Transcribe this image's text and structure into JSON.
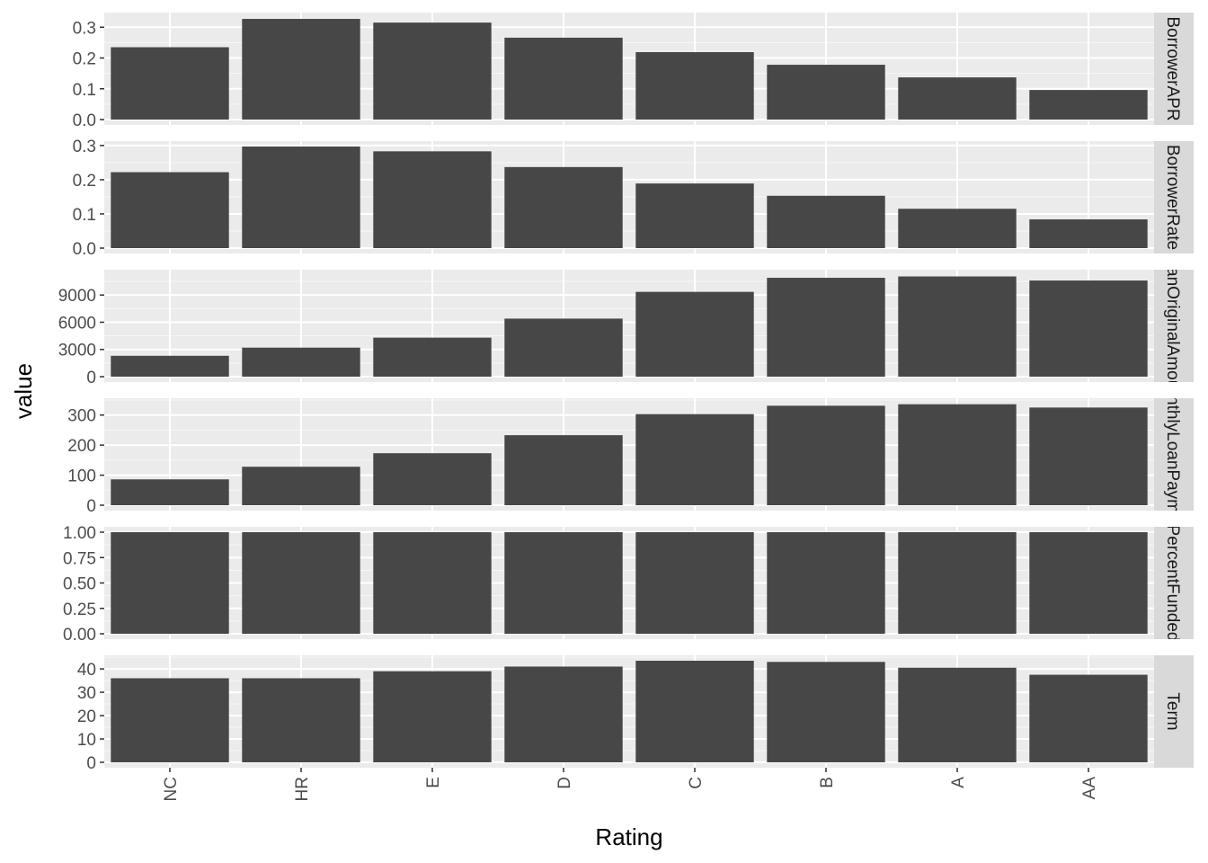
{
  "chart_data": {
    "type": "bar",
    "facet": "rows",
    "xlabel": "Rating",
    "ylabel": "value",
    "categories": [
      "NC",
      "HR",
      "E",
      "D",
      "C",
      "B",
      "A",
      "AA"
    ],
    "colors": {
      "bar": "#474747",
      "panel": "#ebebeb",
      "grid_major": "#ffffff",
      "strip": "#d9d9d9",
      "tick_text": "#4d4d4d"
    },
    "panels": [
      {
        "strip": "BorrowerAPR",
        "ylim": [
          0,
          0.33
        ],
        "yticks": [
          0.0,
          0.1,
          0.2,
          0.3
        ],
        "ytick_labels": [
          "0.0",
          "0.1",
          "0.2",
          "0.3"
        ],
        "values": [
          0.235,
          0.327,
          0.315,
          0.266,
          0.219,
          0.178,
          0.137,
          0.096
        ]
      },
      {
        "strip": "BorrowerRate",
        "ylim": [
          0,
          0.297
        ],
        "yticks": [
          0.0,
          0.1,
          0.2,
          0.3
        ],
        "ytick_labels": [
          "0.0",
          "0.1",
          "0.2",
          "0.3"
        ],
        "values": [
          0.222,
          0.297,
          0.283,
          0.237,
          0.189,
          0.153,
          0.115,
          0.084
        ]
      },
      {
        "strip": "LoanOriginalAmount",
        "ylim": [
          0,
          11200
        ],
        "yticks": [
          0,
          3000,
          6000,
          9000
        ],
        "ytick_labels": [
          "0",
          "3000",
          "6000",
          "9000"
        ],
        "values": [
          2300,
          3200,
          4300,
          6400,
          9350,
          10900,
          11050,
          10600
        ]
      },
      {
        "strip": "MonthlyLoanPayment",
        "ylim": [
          0,
          338
        ],
        "yticks": [
          0,
          100,
          200,
          300
        ],
        "ytick_labels": [
          "0",
          "100",
          "200",
          "300"
        ],
        "values": [
          86,
          128,
          173,
          233,
          303,
          331,
          336,
          325
        ]
      },
      {
        "strip": "PercentFunded",
        "ylim": [
          0,
          1.0
        ],
        "yticks": [
          0.0,
          0.25,
          0.5,
          0.75,
          1.0
        ],
        "ytick_labels": [
          "0.00",
          "0.25",
          "0.50",
          "0.75",
          "1.00"
        ],
        "values": [
          1.0,
          1.0,
          1.0,
          1.0,
          1.0,
          1.0,
          1.0,
          1.0
        ]
      },
      {
        "strip": "Term",
        "ylim": [
          0,
          43.5
        ],
        "yticks": [
          0,
          10,
          20,
          30,
          40
        ],
        "ytick_labels": [
          "0",
          "10",
          "20",
          "30",
          "40"
        ],
        "values": [
          36.0,
          36.0,
          39.0,
          41.0,
          43.5,
          43.0,
          40.5,
          37.5
        ]
      }
    ]
  }
}
